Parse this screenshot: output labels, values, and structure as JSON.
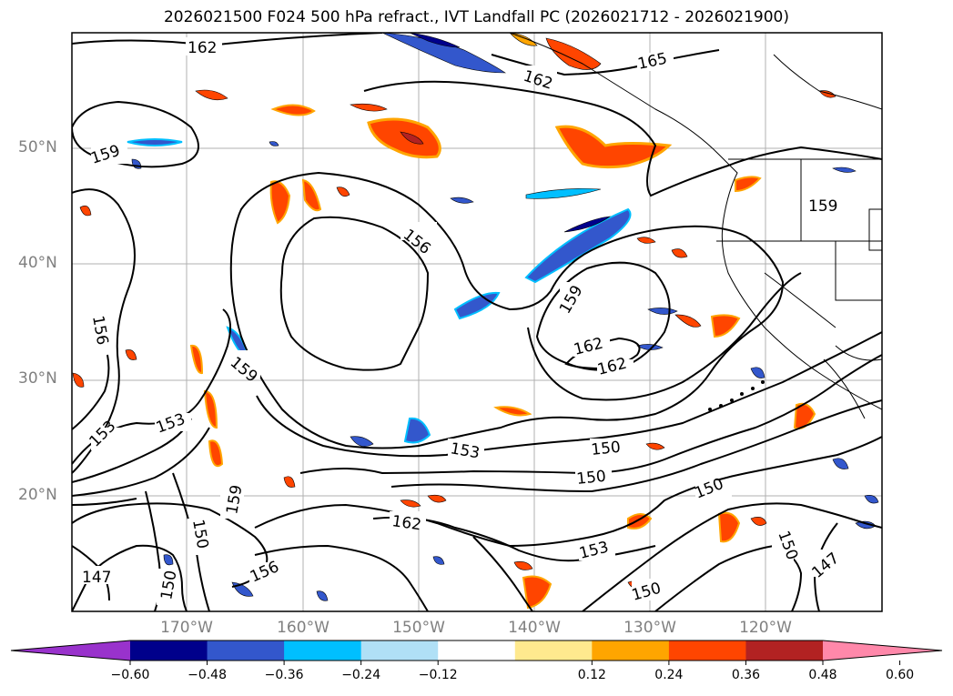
{
  "title": "2026021500 F024 500 hPa refract., IVT Landfall PC (2026021712 - 2026021900)",
  "axes": {
    "latitude_labels": [
      "50°N",
      "40°N",
      "30°N",
      "20°N"
    ],
    "longitude_labels": [
      "170°W",
      "160°W",
      "150°W",
      "140°W",
      "130°W",
      "120°W"
    ]
  },
  "contour_labels": {
    "c162a": "162",
    "c165": "165",
    "c162b": "162",
    "c159a": "159",
    "c159b": "159",
    "c156a": "156",
    "c156b": "156",
    "c159c": "159",
    "c159d": "159",
    "c162c": "162",
    "c162d": "162",
    "c153a": "153",
    "c153b": "153",
    "c153c": "153",
    "c150a": "150",
    "c150b": "150",
    "c150c": "150",
    "c159e": "159",
    "c150d": "150",
    "c162e": "162",
    "c153d": "153",
    "c156c": "156",
    "c147a": "147",
    "c150e": "150",
    "c150f": "150",
    "c150g": "150",
    "c147b": "147"
  },
  "colorbar": {
    "ticks": [
      "−0.60",
      "−0.48",
      "−0.36",
      "−0.24",
      "−0.12",
      "0.12",
      "0.24",
      "0.36",
      "0.48",
      "0.60"
    ],
    "colors": [
      "#9932cc",
      "#00008b",
      "#3357cc",
      "#00bfff",
      "#b0e0f6",
      "#ffffff",
      "#ffe98e",
      "#ffa500",
      "#ff4500",
      "#b22222",
      "#ff88aa"
    ]
  }
}
